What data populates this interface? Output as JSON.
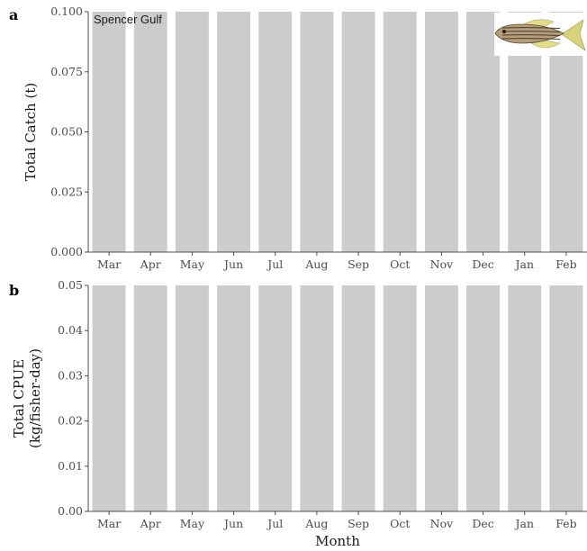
{
  "chart_data": [
    {
      "panel": "a",
      "type": "bar",
      "annotation": "Spencer Gulf",
      "ylabel": "Total Catch (t)",
      "xlabel": "",
      "categories": [
        "Mar",
        "Apr",
        "May",
        "Jun",
        "Jul",
        "Aug",
        "Sep",
        "Oct",
        "Nov",
        "Dec",
        "Jan",
        "Feb"
      ],
      "values": [
        0.1,
        0.1,
        0.1,
        0.1,
        0.1,
        0.1,
        0.1,
        0.1,
        0.1,
        0.1,
        0.1,
        0.1
      ],
      "ylim": [
        0,
        0.1
      ],
      "yticks": [
        "0.000",
        "0.025",
        "0.050",
        "0.075",
        "0.100"
      ],
      "bar_color": "#cccccc",
      "grid": false
    },
    {
      "panel": "b",
      "type": "bar",
      "ylabel": "Total CPUE\n(kg/fisher-day)",
      "xlabel": "Month",
      "categories": [
        "Mar",
        "Apr",
        "May",
        "Jun",
        "Jul",
        "Aug",
        "Sep",
        "Oct",
        "Nov",
        "Dec",
        "Jan",
        "Feb"
      ],
      "values": [
        0.05,
        0.05,
        0.05,
        0.05,
        0.05,
        0.05,
        0.05,
        0.05,
        0.05,
        0.05,
        0.05,
        0.05
      ],
      "ylim": [
        0,
        0.05
      ],
      "yticks": [
        "0.00",
        "0.01",
        "0.02",
        "0.03",
        "0.04",
        "0.05"
      ],
      "bar_color": "#cccccc",
      "grid": false
    }
  ],
  "decorations": {
    "fish_icon": "striped-trumpeter-fish-icon"
  }
}
